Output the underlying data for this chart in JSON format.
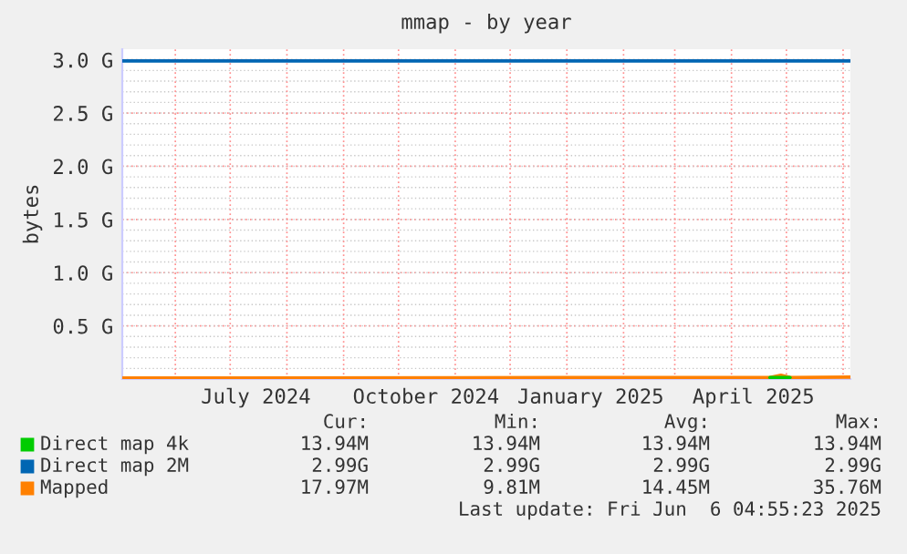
{
  "chart_data": {
    "type": "line",
    "title": "mmap - by year",
    "ylabel": "bytes",
    "series": [
      {
        "name": "Direct map 4k",
        "color": "#00cc00",
        "x": [
          "2025-04-22",
          "2025-05-03"
        ],
        "values": [
          0.01394,
          0.01394
        ]
      },
      {
        "name": "Direct map 2M",
        "color": "#0066b3",
        "x": [
          "2024-05-03",
          "2025-06-05"
        ],
        "values": [
          2.99,
          2.99
        ]
      },
      {
        "name": "Mapped",
        "color": "#ff8000",
        "x": [
          "2024-05-03",
          "2025-01-01",
          "2025-04-22",
          "2025-04-28",
          "2025-05-03",
          "2025-06-05"
        ],
        "values": [
          0.0098,
          0.0145,
          0.0145,
          0.03576,
          0.0145,
          0.01797
        ]
      }
    ],
    "xlim": [
      "2024-05-03",
      "2025-06-05"
    ],
    "xticks": [
      {
        "value": "2024-06-01",
        "label": null
      },
      {
        "value": "2024-07-01",
        "label": null
      },
      {
        "value": "2024-07-15",
        "label": "July 2024"
      },
      {
        "value": "2024-08-01",
        "label": null
      },
      {
        "value": "2024-09-01",
        "label": null
      },
      {
        "value": "2024-10-01",
        "label": null
      },
      {
        "value": "2024-10-16",
        "label": "October 2024"
      },
      {
        "value": "2024-11-01",
        "label": null
      },
      {
        "value": "2024-12-01",
        "label": null
      },
      {
        "value": "2025-01-01",
        "label": null
      },
      {
        "value": "2025-01-14",
        "label": "January 2025"
      },
      {
        "value": "2025-02-01",
        "label": null
      },
      {
        "value": "2025-03-01",
        "label": null
      },
      {
        "value": "2025-04-01",
        "label": null
      },
      {
        "value": "2025-04-13",
        "label": "April 2025"
      },
      {
        "value": "2025-05-01",
        "label": null
      },
      {
        "value": "2025-06-01",
        "label": null
      }
    ],
    "ylim": [
      0,
      3.1
    ],
    "yticks": [
      {
        "value": 0.5,
        "label": "0.5 G"
      },
      {
        "value": 1.0,
        "label": "1.0 G"
      },
      {
        "value": 1.5,
        "label": "1.5 G"
      },
      {
        "value": 2.0,
        "label": "2.0 G"
      },
      {
        "value": 2.5,
        "label": "2.5 G"
      },
      {
        "value": 3.0,
        "label": "3.0 G"
      }
    ],
    "grid": true,
    "legend": "bottom",
    "annotations": [
      "Cur:",
      "Min:",
      "Avg:",
      "Max:",
      "13.94M",
      "13.94M",
      "13.94M",
      "13.94M",
      "2.99G",
      "2.99G",
      "2.99G",
      "2.99G",
      "17.97M",
      "9.81M",
      "14.45M",
      "35.76M",
      "Last update: Fri Jun  6 04:55:23 2025"
    ]
  }
}
